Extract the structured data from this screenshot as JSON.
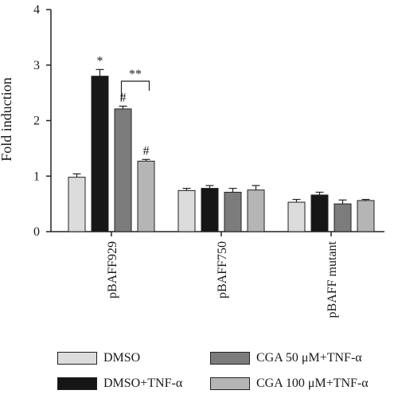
{
  "chart_data": {
    "type": "bar",
    "ylabel": "Fold induction",
    "xlabel": "",
    "ylim": [
      0,
      4
    ],
    "yticks": [
      "0",
      "1",
      "2",
      "3",
      "4"
    ],
    "categories": [
      "pBAFF929",
      "pBAFF750",
      "pBAFF mutant"
    ],
    "series": [
      {
        "name": "DMSO",
        "color": "#dcdcdc",
        "values": [
          0.98,
          0.74,
          0.53
        ],
        "errors": [
          0.06,
          0.04,
          0.05
        ]
      },
      {
        "name": "DMSO+TNF-α",
        "color": "#161616",
        "values": [
          2.8,
          0.78,
          0.66
        ],
        "errors": [
          0.12,
          0.05,
          0.05
        ]
      },
      {
        "name": "CGA 50 μM+TNF-α",
        "color": "#7c7c7c",
        "values": [
          2.21,
          0.71,
          0.5
        ],
        "errors": [
          0.05,
          0.07,
          0.07
        ]
      },
      {
        "name": "CGA 100 μM+TNF-α",
        "color": "#b5b5b5",
        "values": [
          1.27,
          0.75,
          0.56
        ],
        "errors": [
          0.03,
          0.08,
          0.02
        ]
      }
    ],
    "annotations": [
      {
        "text": "*",
        "category": 0,
        "series": 1
      },
      {
        "text": "#",
        "category": 0,
        "series": 2
      },
      {
        "text": "#",
        "category": 0,
        "series": 3
      },
      {
        "text": "**",
        "category": 0,
        "bracket_series": [
          2,
          3
        ]
      }
    ],
    "legend_position": "bottom",
    "grid": false
  }
}
